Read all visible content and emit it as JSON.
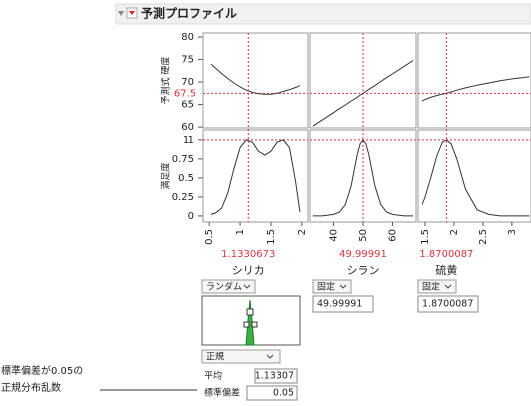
{
  "header": {
    "title": "予測プロファイル"
  },
  "response": {
    "label": "予測式 硬度",
    "value": 67.5,
    "ylim": [
      59.8,
      80.9
    ],
    "yticks": [
      60,
      65,
      70,
      75,
      80
    ]
  },
  "desirability": {
    "label": "満足度",
    "value": 1,
    "ylim": [
      -0.08,
      1.13
    ],
    "yticks": [
      0,
      0.25,
      0.5,
      0.75,
      1
    ]
  },
  "factors": [
    {
      "name": "シリカ",
      "value": 1.1330673,
      "xlim": [
        0.4,
        2.1
      ],
      "xticks": [
        0.5,
        1,
        1.5,
        2
      ],
      "x": [
        0.53,
        0.6,
        0.7,
        0.8,
        0.9,
        1.0,
        1.1,
        1.2,
        1.3,
        1.4,
        1.5,
        1.6,
        1.7,
        1.8,
        1.9,
        1.97
      ],
      "response": [
        74,
        73.1,
        71.9,
        70.8,
        69.8,
        68.9,
        68.2,
        67.7,
        67.4,
        67.3,
        67.3,
        67.5,
        67.9,
        68.3,
        68.8,
        69.2
      ],
      "desirability": [
        0.02,
        0.04,
        0.1,
        0.3,
        0.62,
        0.9,
        1.0,
        0.97,
        0.85,
        0.8,
        0.85,
        0.97,
        1.0,
        0.9,
        0.45,
        0.05
      ],
      "setting": "ランダム"
    },
    {
      "name": "シラン",
      "value": 49.99991,
      "xlim": [
        32,
        68
      ],
      "xticks": [
        40,
        50,
        60
      ],
      "x": [
        33,
        36,
        40,
        42,
        44,
        46,
        48,
        49,
        50,
        51,
        52,
        54,
        56,
        58,
        60,
        64,
        67
      ],
      "response": [
        60.2,
        61.5,
        63.2,
        64.1,
        64.9,
        65.8,
        66.6,
        67.1,
        67.5,
        67.9,
        68.4,
        69.2,
        70.1,
        71,
        71.8,
        73.5,
        74.8
      ],
      "desirability": [
        0,
        0,
        0.02,
        0.05,
        0.15,
        0.4,
        0.8,
        0.95,
        1,
        0.95,
        0.8,
        0.4,
        0.15,
        0.05,
        0.02,
        0,
        0
      ],
      "setting": "固定"
    },
    {
      "name": "硫黄",
      "value": 1.8700087,
      "xlim": [
        1.38,
        3.33
      ],
      "xticks": [
        1.5,
        2,
        2.5,
        3
      ],
      "x": [
        1.45,
        1.5,
        1.6,
        1.7,
        1.8,
        1.87,
        1.95,
        2.05,
        2.2,
        2.4,
        2.6,
        2.8,
        3,
        3.2,
        3.3
      ],
      "response": [
        65.8,
        66.1,
        66.6,
        67,
        67.3,
        67.5,
        67.8,
        68.2,
        68.7,
        69.3,
        69.8,
        70.3,
        70.7,
        71,
        71.2
      ],
      "desirability": [
        0.15,
        0.25,
        0.5,
        0.78,
        0.97,
        1,
        0.95,
        0.75,
        0.35,
        0.08,
        0.02,
        0,
        0,
        0,
        0
      ],
      "setting": "固定"
    }
  ],
  "random": {
    "distribution": "正規",
    "mean_label": "平均",
    "mean": 1.13307,
    "sd_label": "標準偏差",
    "sd": 0.05
  },
  "annotation": [
    "標準偏差が0.05の",
    "正規分布乱数"
  ]
}
